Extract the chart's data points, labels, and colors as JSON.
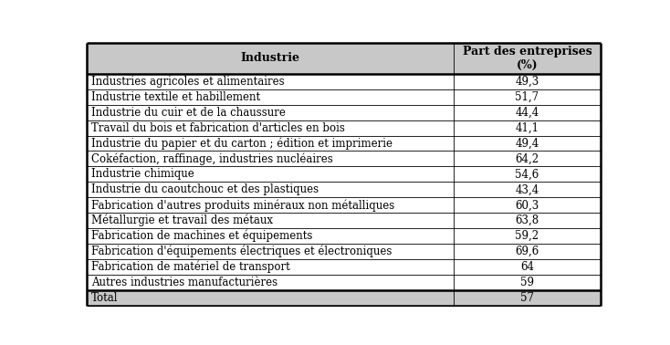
{
  "col1_header": "Industrie",
  "col2_header": "Part des entreprises\n(%)",
  "rows": [
    [
      "Industries agricoles et alimentaires",
      "49,3"
    ],
    [
      "Industrie textile et habillement",
      "51,7"
    ],
    [
      "Industrie du cuir et de la chaussure",
      "44,4"
    ],
    [
      "Travail du bois et fabrication d'articles en bois",
      "41,1"
    ],
    [
      "Industrie du papier et du carton ; édition et imprimerie",
      "49,4"
    ],
    [
      "Cokéfaction, raffinage, industries nucléaires",
      "64,2"
    ],
    [
      "Industrie chimique",
      "54,6"
    ],
    [
      "Industrie du caoutchouc et des plastiques",
      "43,4"
    ],
    [
      "Fabrication d'autres produits minéraux non métalliques",
      "60,3"
    ],
    [
      "Métallurgie et travail des métaux",
      "63,8"
    ],
    [
      "Fabrication de machines et équipements",
      "59,2"
    ],
    [
      "Fabrication d'équipements électriques et électroniques",
      "69,6"
    ],
    [
      "Fabrication de matériel de transport",
      "64"
    ],
    [
      "Autres industries manufacturières",
      "59"
    ],
    [
      "Total",
      "57"
    ]
  ],
  "header_bg": "#c8c8c8",
  "row_bg": "#ffffff",
  "total_bg": "#c8c8c8",
  "border_color": "#000000",
  "text_color": "#000000",
  "font_size": 8.5,
  "header_font_size": 9,
  "col_split": 0.715,
  "fig_width": 7.34,
  "fig_height": 3.78,
  "dpi": 100
}
